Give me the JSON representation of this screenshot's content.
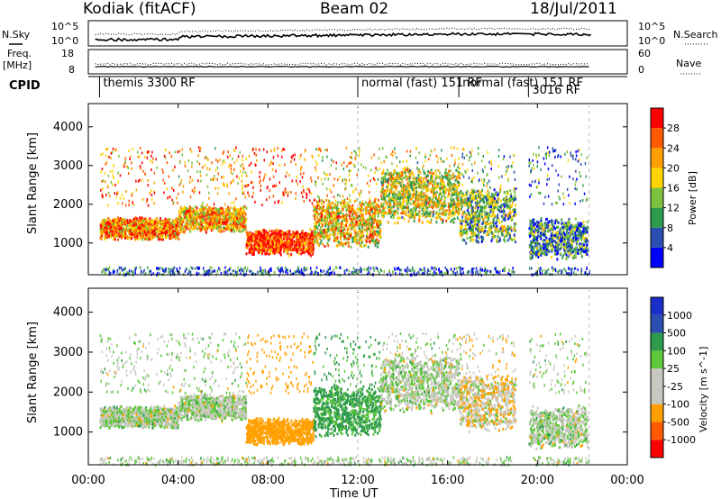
{
  "header": {
    "station": "Kodiak (fitACF)",
    "beam": "Beam 02",
    "date": "18/Jul/2011"
  },
  "status_panels": {
    "nsky_label": "N.Sky",
    "freq_label_top": "Freq.",
    "freq_label_unit": "[MHz]",
    "cpid_label": "CPID",
    "nsearch_label": "N.Search",
    "nave_label": "Nave",
    "noise_left_ticks": [
      "10^5",
      "10^0"
    ],
    "noise_right_ticks": [
      "10^5",
      "10^0"
    ],
    "freq_left_ticks": [
      "18",
      "8"
    ],
    "freq_right_ticks": [
      "60",
      "0"
    ],
    "cpid_segments": [
      {
        "label": "themis 3300 RF",
        "start_h": 0.5
      },
      {
        "label": "normal (fast)  151 RF",
        "start_h": 12.0
      },
      {
        "label": "normal (fast)  151 RF",
        "start_h": 16.5
      },
      {
        "label": "3016 RF",
        "start_h": 19.6
      }
    ]
  },
  "time_axis": {
    "label": "Time UT",
    "ticks": [
      "00:00",
      "04:00",
      "08:00",
      "12:00",
      "16:00",
      "20:00",
      "00:00"
    ]
  },
  "colors": {
    "power": [
      "#0000ff",
      "#2b4fb0",
      "#2e9a4c",
      "#7dc13f",
      "#ffd400",
      "#ffa000",
      "#ff5a00",
      "#ff0000"
    ],
    "velocity": [
      "#ff0000",
      "#ff5a00",
      "#ffa000",
      "#c8c8c0",
      "#c8c8c0",
      "#5cc83a",
      "#2e9a4c",
      "#2b4fb0",
      "#1a2ec8"
    ]
  },
  "chart_data": [
    {
      "type": "heatmap",
      "title": "Power",
      "xlabel": "Time UT",
      "ylabel": "Slant Range [km]",
      "x_range_hours": [
        0,
        24
      ],
      "ylim": [
        180,
        4600
      ],
      "yticks": [
        1000,
        2000,
        3000,
        4000
      ],
      "colorbar": {
        "label": "Power [dB]",
        "ticks": [
          "4",
          "8",
          "12",
          "16",
          "20",
          "24",
          "28"
        ],
        "range": [
          0,
          30
        ]
      },
      "echo_bands": [
        {
          "t": [
            0.5,
            4.0
          ],
          "range_km": [
            1100,
            1700
          ],
          "power_db": 22
        },
        {
          "t": [
            4.0,
            7.0
          ],
          "range_km": [
            1300,
            2000
          ],
          "power_db": 20
        },
        {
          "t": [
            7.0,
            10.0
          ],
          "range_km": [
            700,
            1400
          ],
          "power_db": 26
        },
        {
          "t": [
            10.0,
            13.0
          ],
          "range_km": [
            900,
            2200
          ],
          "power_db": 18
        },
        {
          "t": [
            13.0,
            16.5
          ],
          "range_km": [
            1500,
            3000
          ],
          "power_db": 16
        },
        {
          "t": [
            16.5,
            19.0
          ],
          "range_km": [
            1000,
            2500
          ],
          "power_db": 12
        },
        {
          "t": [
            19.6,
            22.2
          ],
          "range_km": [
            600,
            1700
          ],
          "power_db": 8
        }
      ]
    },
    {
      "type": "heatmap",
      "title": "Velocity",
      "xlabel": "Time UT",
      "ylabel": "Slant Range [km]",
      "x_range_hours": [
        0,
        24
      ],
      "ylim": [
        180,
        4600
      ],
      "yticks": [
        1000,
        2000,
        3000,
        4000
      ],
      "colorbar": {
        "label": "Velocity [m s^-1]",
        "ticks": [
          "1000",
          "500",
          "100",
          "25",
          "-25",
          "-100",
          "-500",
          "-1000"
        ],
        "range": [
          -1200,
          1200
        ]
      },
      "echo_bands": [
        {
          "t": [
            0.5,
            4.0
          ],
          "range_km": [
            1100,
            1700
          ],
          "velocity": 0
        },
        {
          "t": [
            4.0,
            7.0
          ],
          "range_km": [
            1300,
            2000
          ],
          "velocity": 0
        },
        {
          "t": [
            7.0,
            10.0
          ],
          "range_km": [
            700,
            1400
          ],
          "velocity": -300
        },
        {
          "t": [
            10.0,
            13.0
          ],
          "range_km": [
            900,
            2200
          ],
          "velocity": 150
        },
        {
          "t": [
            13.0,
            16.5
          ],
          "range_km": [
            1500,
            3000
          ],
          "velocity": 0
        },
        {
          "t": [
            16.5,
            19.0
          ],
          "range_km": [
            1000,
            2500
          ],
          "velocity": -60
        },
        {
          "t": [
            19.6,
            22.2
          ],
          "range_km": [
            600,
            1700
          ],
          "velocity": 0
        }
      ]
    }
  ]
}
